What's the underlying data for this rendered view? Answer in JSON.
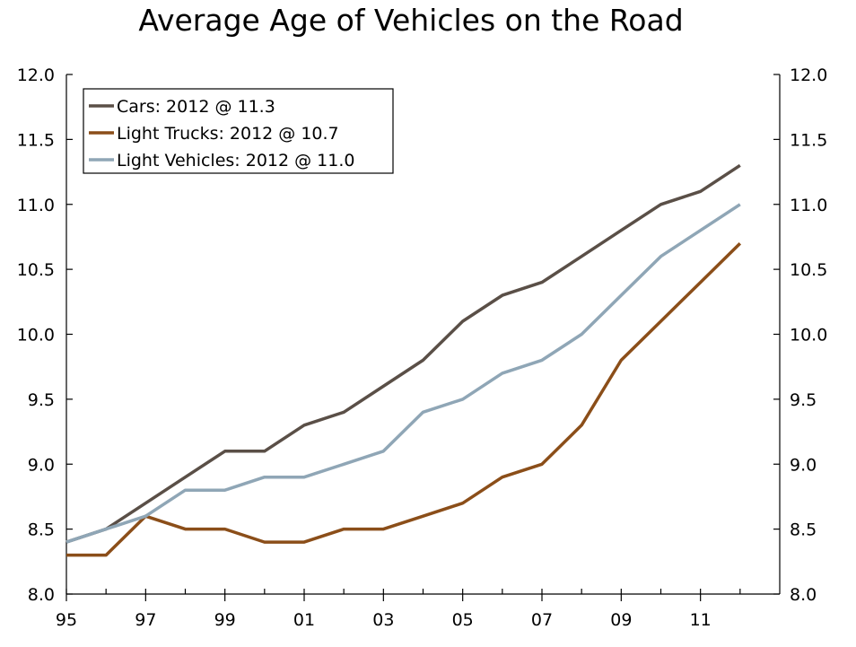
{
  "chart_data": {
    "type": "line",
    "title": "Average Age of Vehicles on the Road",
    "xlabel": "",
    "ylabel": "",
    "x": [
      1995,
      1996,
      1997,
      1998,
      1999,
      2000,
      2001,
      2002,
      2003,
      2004,
      2005,
      2006,
      2007,
      2008,
      2009,
      2010,
      2011,
      2012
    ],
    "x_tick_values": [
      1995,
      1997,
      1999,
      2001,
      2003,
      2005,
      2007,
      2009,
      2011
    ],
    "x_tick_labels": [
      "95",
      "97",
      "99",
      "01",
      "03",
      "05",
      "07",
      "09",
      "11"
    ],
    "xlim": [
      1995,
      2013
    ],
    "ylim": [
      8.0,
      12.0
    ],
    "y_ticks": [
      "8.0",
      "8.5",
      "9.0",
      "9.5",
      "10.0",
      "10.5",
      "11.0",
      "11.5",
      "12.0"
    ],
    "y_axis_both_sides": true,
    "grid": false,
    "legend_position": "top-left",
    "series": [
      {
        "name": "Cars: 2012 @ 11.3",
        "color": "#5a4f47",
        "values": [
          8.4,
          8.5,
          8.7,
          8.9,
          9.1,
          9.1,
          9.3,
          9.4,
          9.6,
          9.8,
          10.1,
          10.3,
          10.4,
          10.6,
          10.8,
          11.0,
          11.1,
          11.3
        ]
      },
      {
        "name": "Light Trucks: 2012 @ 10.7",
        "color": "#8b4e19",
        "values": [
          8.3,
          8.3,
          8.6,
          8.5,
          8.5,
          8.4,
          8.4,
          8.5,
          8.5,
          8.6,
          8.7,
          8.9,
          9.0,
          9.3,
          9.8,
          10.1,
          10.4,
          10.7
        ]
      },
      {
        "name": "Light Vehicles: 2012 @ 11.0",
        "color": "#8fa6b6",
        "values": [
          8.4,
          8.5,
          8.6,
          8.8,
          8.8,
          8.9,
          8.9,
          9.0,
          9.1,
          9.4,
          9.5,
          9.7,
          9.8,
          10.0,
          10.3,
          10.6,
          10.8,
          11.0
        ]
      }
    ]
  }
}
